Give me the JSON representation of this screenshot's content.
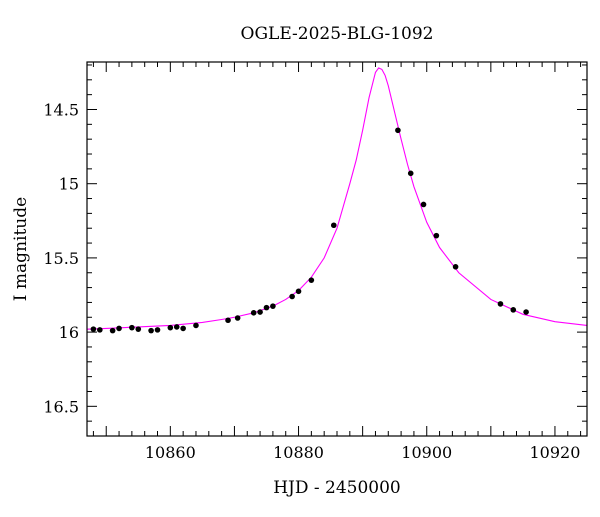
{
  "chart_data": {
    "type": "line",
    "title": "OGLE-2025-BLG-1092",
    "xlabel": "HJD - 2450000",
    "ylabel": "I magnitude",
    "xlim": [
      10847,
      10925
    ],
    "ylim": [
      16.7,
      14.18
    ],
    "y_inverted": true,
    "x_ticks": [
      10860,
      10880,
      10900,
      10920
    ],
    "x_tick_labels": [
      "10860",
      "10880",
      "10900",
      "10920"
    ],
    "y_ticks": [
      14.5,
      15,
      15.5,
      16,
      16.5
    ],
    "y_tick_labels": [
      "14.5",
      "15",
      "15.5",
      "16",
      "16.5"
    ],
    "grid": false,
    "legend": "none",
    "colors": {
      "model": "#ff00ff",
      "points": "#000000",
      "axes": "#000000"
    },
    "model": {
      "name": "",
      "x": [
        10847,
        10850,
        10855,
        10860,
        10865,
        10868,
        10870,
        10873,
        10876,
        10878,
        10880,
        10882,
        10884,
        10886,
        10888,
        10889,
        10890,
        10891,
        10892,
        10892.5,
        10893,
        10893.5,
        10894,
        10895,
        10896,
        10897,
        10898,
        10900,
        10902,
        10905,
        10910,
        10915,
        10920,
        10925
      ],
      "y": [
        15.98,
        15.975,
        15.965,
        15.955,
        15.935,
        15.915,
        15.9,
        15.87,
        15.825,
        15.78,
        15.72,
        15.63,
        15.5,
        15.3,
        15.0,
        14.84,
        14.64,
        14.42,
        14.25,
        14.22,
        14.23,
        14.27,
        14.34,
        14.52,
        14.7,
        14.87,
        15.02,
        15.26,
        15.43,
        15.6,
        15.78,
        15.88,
        15.93,
        15.955
      ]
    },
    "points": {
      "name": "",
      "x": [
        10848,
        10849,
        10851,
        10852,
        10854,
        10855,
        10857,
        10858,
        10860,
        10861,
        10862,
        10864,
        10869,
        10870.5,
        10873,
        10874,
        10875,
        10876,
        10879,
        10880,
        10882,
        10885.5,
        10895.5,
        10897.5,
        10899.5,
        10901.5,
        10904.5,
        10911.5,
        10913.5,
        10915.5
      ],
      "y": [
        15.98,
        15.985,
        15.99,
        15.975,
        15.97,
        15.98,
        15.99,
        15.985,
        15.97,
        15.965,
        15.975,
        15.955,
        15.92,
        15.905,
        15.87,
        15.865,
        15.835,
        15.825,
        15.76,
        15.725,
        15.65,
        15.28,
        14.64,
        14.93,
        15.14,
        15.35,
        15.56,
        15.81,
        15.85,
        15.865
      ]
    }
  }
}
